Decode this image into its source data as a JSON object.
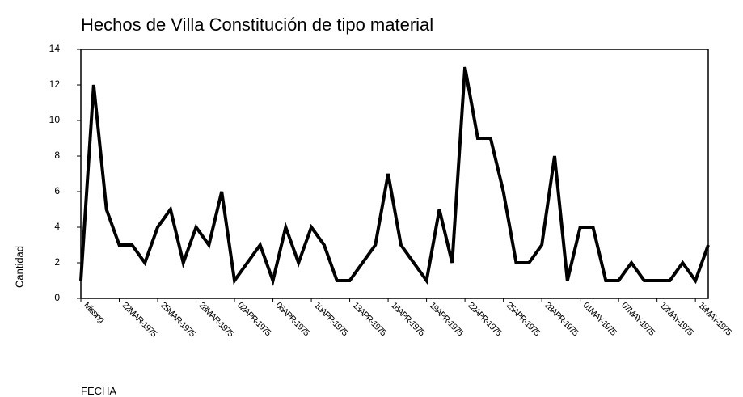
{
  "chart_data": {
    "type": "line",
    "title": "Hechos de Villa Constitución de tipo material",
    "x_label": "FECHA",
    "y_label": "Cantidad",
    "categories": [
      "Missing",
      null,
      null,
      "22MAR-1975",
      null,
      null,
      "25MAR-1975",
      null,
      null,
      "28MAR-1975",
      null,
      null,
      "02APR-1975",
      null,
      null,
      "06APR-1975",
      null,
      null,
      "10APR-1975",
      null,
      null,
      "13APR-1975",
      null,
      null,
      "16APR-1975",
      null,
      null,
      "19APR-1975",
      null,
      null,
      "22APR-1975",
      null,
      null,
      "25APR-1975",
      null,
      null,
      "28APR-1975",
      null,
      null,
      "01MAY-1975",
      null,
      null,
      "07MAY-1975",
      null,
      null,
      "12MAY-1975",
      null,
      null,
      "19MAY-1975",
      null
    ],
    "series": [
      {
        "name": "Cantidad",
        "color": "#000000",
        "values": [
          1,
          12,
          5,
          3,
          3,
          2,
          4,
          5,
          2,
          4,
          3,
          6,
          1,
          2,
          3,
          1,
          4,
          2,
          4,
          3,
          1,
          1,
          2,
          3,
          7,
          3,
          2,
          1,
          5,
          2,
          13,
          9,
          9,
          6,
          2,
          2,
          3,
          8,
          1,
          4,
          4,
          1,
          1,
          2,
          1,
          1,
          1,
          2,
          1,
          3
        ]
      }
    ],
    "ylim": [
      0,
      14
    ],
    "yticks": [
      0,
      2,
      4,
      6,
      8,
      10,
      12,
      14
    ],
    "grid": false
  }
}
